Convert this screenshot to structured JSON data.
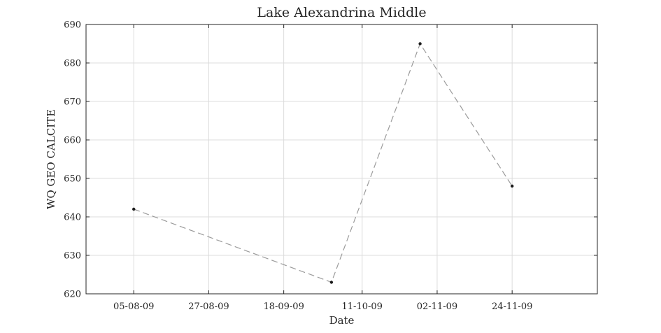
{
  "chart_data": {
    "type": "line",
    "title": "Lake Alexandrina Middle",
    "xlabel": "Date",
    "ylabel": "WQ GEO CALCITE",
    "x_ticks": [
      "05-08-09",
      "27-08-09",
      "18-09-09",
      "11-10-09",
      "02-11-09",
      "24-11-09"
    ],
    "y_ticks": [
      620,
      630,
      640,
      650,
      660,
      670,
      680,
      690
    ],
    "xlim": [
      "2009-07-22",
      "2009-12-19"
    ],
    "ylim": [
      620,
      690
    ],
    "grid": true,
    "series": [
      {
        "x": [
          "2009-08-05",
          "2009-10-02",
          "2009-10-28",
          "2009-11-24"
        ],
        "y": [
          642,
          623,
          685,
          648
        ],
        "line_style": "dashed",
        "line_color": "#9b9b9b",
        "marker": "dot",
        "marker_color": "#1a1a1a"
      }
    ]
  }
}
